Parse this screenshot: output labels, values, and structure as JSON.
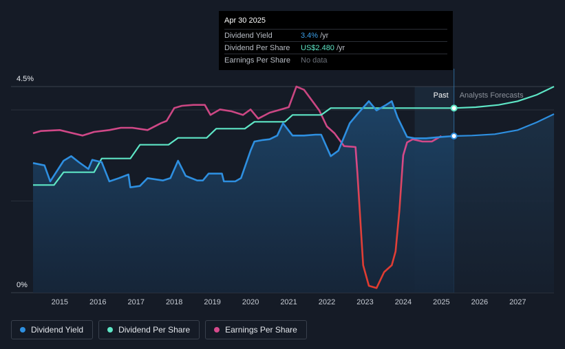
{
  "tooltip": {
    "date": "Apr 30 2025",
    "rows": [
      {
        "label": "Dividend Yield",
        "value": "3.4%",
        "unit": "/yr"
      },
      {
        "label": "Dividend Per Share",
        "value": "US$2.480",
        "unit": "/yr"
      },
      {
        "label": "Earnings Per Share",
        "value": "No data",
        "unit": ""
      }
    ]
  },
  "regions": {
    "past": "Past",
    "forecast": "Analysts Forecasts"
  },
  "legend": [
    {
      "label": "Dividend Yield",
      "color": "#2e8fe0"
    },
    {
      "label": "Dividend Per Share",
      "color": "#5ee6c6"
    },
    {
      "label": "Earnings Per Share",
      "color": "#d64a8c"
    }
  ],
  "chart_data": {
    "type": "line",
    "y_tick_labels": [
      "4.5%",
      "0%"
    ],
    "ylim": [
      0,
      4.5
    ],
    "xlim": [
      2014.3,
      2027.95
    ],
    "x_ticks": [
      2015,
      2016,
      2017,
      2018,
      2019,
      2020,
      2021,
      2022,
      2023,
      2024,
      2025,
      2026,
      2027
    ],
    "x_tick_labels": [
      "2015",
      "2016",
      "2017",
      "2018",
      "2019",
      "2020",
      "2021",
      "2022",
      "2023",
      "2024",
      "2025",
      "2026",
      "2027"
    ],
    "grid": true,
    "legend_position": "bottom-left",
    "past_end": 2025.33,
    "past_shade_start": 2024.3,
    "series": [
      {
        "name": "Dividend Yield",
        "color": "#2e8fe0",
        "units": "%",
        "points": [
          [
            2014.3,
            2.83
          ],
          [
            2014.6,
            2.78
          ],
          [
            2014.75,
            2.43
          ],
          [
            2015.1,
            2.88
          ],
          [
            2015.3,
            2.98
          ],
          [
            2015.5,
            2.85
          ],
          [
            2015.75,
            2.7
          ],
          [
            2015.85,
            2.9
          ],
          [
            2016.1,
            2.85
          ],
          [
            2016.3,
            2.43
          ],
          [
            2016.55,
            2.5
          ],
          [
            2016.8,
            2.58
          ],
          [
            2016.85,
            2.3
          ],
          [
            2017.1,
            2.33
          ],
          [
            2017.3,
            2.5
          ],
          [
            2017.7,
            2.45
          ],
          [
            2017.9,
            2.5
          ],
          [
            2018.1,
            2.88
          ],
          [
            2018.3,
            2.55
          ],
          [
            2018.6,
            2.45
          ],
          [
            2018.75,
            2.45
          ],
          [
            2018.9,
            2.6
          ],
          [
            2019.25,
            2.6
          ],
          [
            2019.3,
            2.43
          ],
          [
            2019.6,
            2.43
          ],
          [
            2019.75,
            2.5
          ],
          [
            2020.0,
            3.1
          ],
          [
            2020.1,
            3.3
          ],
          [
            2020.3,
            3.33
          ],
          [
            2020.5,
            3.35
          ],
          [
            2020.7,
            3.43
          ],
          [
            2020.85,
            3.7
          ],
          [
            2021.1,
            3.43
          ],
          [
            2021.4,
            3.43
          ],
          [
            2021.7,
            3.45
          ],
          [
            2021.85,
            3.45
          ],
          [
            2022.1,
            2.98
          ],
          [
            2022.3,
            3.1
          ],
          [
            2022.6,
            3.7
          ],
          [
            2022.8,
            3.9
          ],
          [
            2023.1,
            4.18
          ],
          [
            2023.3,
            3.98
          ],
          [
            2023.55,
            4.1
          ],
          [
            2023.7,
            4.18
          ],
          [
            2023.85,
            3.83
          ],
          [
            2024.1,
            3.4
          ],
          [
            2024.3,
            3.37
          ],
          [
            2024.6,
            3.37
          ],
          [
            2025.0,
            3.4
          ],
          [
            2025.33,
            3.42
          ]
        ]
      },
      {
        "name": "Dividend Yield forecast",
        "color": "#2e8fe0",
        "units": "%",
        "points": [
          [
            2025.33,
            3.42
          ],
          [
            2025.8,
            3.43
          ],
          [
            2026.4,
            3.46
          ],
          [
            2027.0,
            3.55
          ],
          [
            2027.5,
            3.72
          ],
          [
            2027.95,
            3.9
          ]
        ]
      },
      {
        "name": "Dividend Per Share",
        "color": "#5ee6c6",
        "units": "scaled",
        "points": [
          [
            2014.3,
            2.35
          ],
          [
            2014.85,
            2.35
          ],
          [
            2015.1,
            2.63
          ],
          [
            2015.9,
            2.63
          ],
          [
            2016.1,
            2.93
          ],
          [
            2016.85,
            2.93
          ],
          [
            2017.1,
            3.23
          ],
          [
            2017.85,
            3.23
          ],
          [
            2018.1,
            3.38
          ],
          [
            2018.85,
            3.38
          ],
          [
            2019.1,
            3.58
          ],
          [
            2019.85,
            3.58
          ],
          [
            2020.1,
            3.73
          ],
          [
            2020.9,
            3.73
          ],
          [
            2021.1,
            3.88
          ],
          [
            2021.85,
            3.88
          ],
          [
            2022.1,
            4.03
          ],
          [
            2025.33,
            4.03
          ]
        ]
      },
      {
        "name": "Dividend Per Share forecast",
        "color": "#5ee6c6",
        "units": "scaled",
        "points": [
          [
            2025.33,
            4.03
          ],
          [
            2025.9,
            4.05
          ],
          [
            2026.5,
            4.1
          ],
          [
            2027.0,
            4.18
          ],
          [
            2027.5,
            4.32
          ],
          [
            2027.95,
            4.5
          ]
        ]
      },
      {
        "name": "Earnings Per Share",
        "color": "#d64a8c",
        "units": "scaled",
        "points": [
          [
            2014.3,
            3.48
          ],
          [
            2014.5,
            3.53
          ],
          [
            2015.0,
            3.55
          ],
          [
            2015.2,
            3.51
          ],
          [
            2015.6,
            3.43
          ],
          [
            2015.9,
            3.51
          ],
          [
            2016.3,
            3.55
          ],
          [
            2016.6,
            3.6
          ],
          [
            2016.9,
            3.6
          ],
          [
            2017.3,
            3.55
          ],
          [
            2017.65,
            3.7
          ],
          [
            2017.8,
            3.75
          ],
          [
            2018.0,
            4.03
          ],
          [
            2018.2,
            4.08
          ],
          [
            2018.5,
            4.1
          ],
          [
            2018.8,
            4.1
          ],
          [
            2018.95,
            3.88
          ],
          [
            2019.2,
            4.0
          ],
          [
            2019.5,
            3.96
          ],
          [
            2019.8,
            3.88
          ],
          [
            2020.0,
            4.0
          ],
          [
            2020.2,
            3.8
          ],
          [
            2020.5,
            3.93
          ],
          [
            2020.8,
            4.0
          ],
          [
            2021.0,
            4.05
          ],
          [
            2021.2,
            4.5
          ],
          [
            2021.4,
            4.43
          ],
          [
            2021.8,
            3.98
          ],
          [
            2022.0,
            3.63
          ],
          [
            2022.2,
            3.48
          ],
          [
            2022.45,
            3.2
          ],
          [
            2022.75,
            3.18
          ],
          [
            2022.8,
            2.6
          ],
          [
            2022.95,
            0.6
          ],
          [
            2023.1,
            0.15
          ],
          [
            2023.3,
            0.1
          ],
          [
            2023.5,
            0.45
          ],
          [
            2023.7,
            0.6
          ],
          [
            2023.8,
            0.9
          ],
          [
            2023.9,
            1.8
          ],
          [
            2024.0,
            3.0
          ],
          [
            2024.1,
            3.28
          ],
          [
            2024.25,
            3.35
          ],
          [
            2024.5,
            3.3
          ],
          [
            2024.75,
            3.3
          ],
          [
            2024.85,
            3.35
          ],
          [
            2025.0,
            3.42
          ]
        ]
      }
    ],
    "markers": [
      {
        "series": "Dividend Per Share",
        "x": 2025.33,
        "y": 4.03
      },
      {
        "series": "Dividend Yield",
        "x": 2025.33,
        "y": 3.42
      }
    ]
  }
}
